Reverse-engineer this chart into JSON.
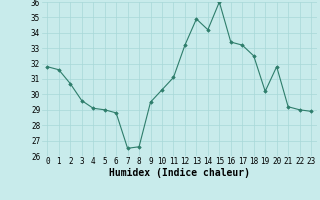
{
  "x": [
    0,
    1,
    2,
    3,
    4,
    5,
    6,
    7,
    8,
    9,
    10,
    11,
    12,
    13,
    14,
    15,
    16,
    17,
    18,
    19,
    20,
    21,
    22,
    23
  ],
  "y": [
    31.8,
    31.6,
    30.7,
    29.6,
    29.1,
    29.0,
    28.8,
    26.5,
    26.6,
    29.5,
    30.3,
    31.1,
    33.2,
    34.9,
    34.2,
    36.0,
    33.4,
    33.2,
    32.5,
    30.2,
    31.8,
    29.2,
    29.0,
    28.9
  ],
  "line_color": "#2E7D6B",
  "marker": "D",
  "marker_size": 1.8,
  "bg_color": "#C8EBEB",
  "grid_color": "#A8D8D8",
  "xlabel": "Humidex (Indice chaleur)",
  "ylim": [
    26,
    36
  ],
  "xlim": [
    -0.5,
    23.5
  ],
  "yticks": [
    26,
    27,
    28,
    29,
    30,
    31,
    32,
    33,
    34,
    35,
    36
  ],
  "xticks": [
    0,
    1,
    2,
    3,
    4,
    5,
    6,
    7,
    8,
    9,
    10,
    11,
    12,
    13,
    14,
    15,
    16,
    17,
    18,
    19,
    20,
    21,
    22,
    23
  ],
  "tick_fontsize": 5.5,
  "xlabel_fontsize": 7.0
}
